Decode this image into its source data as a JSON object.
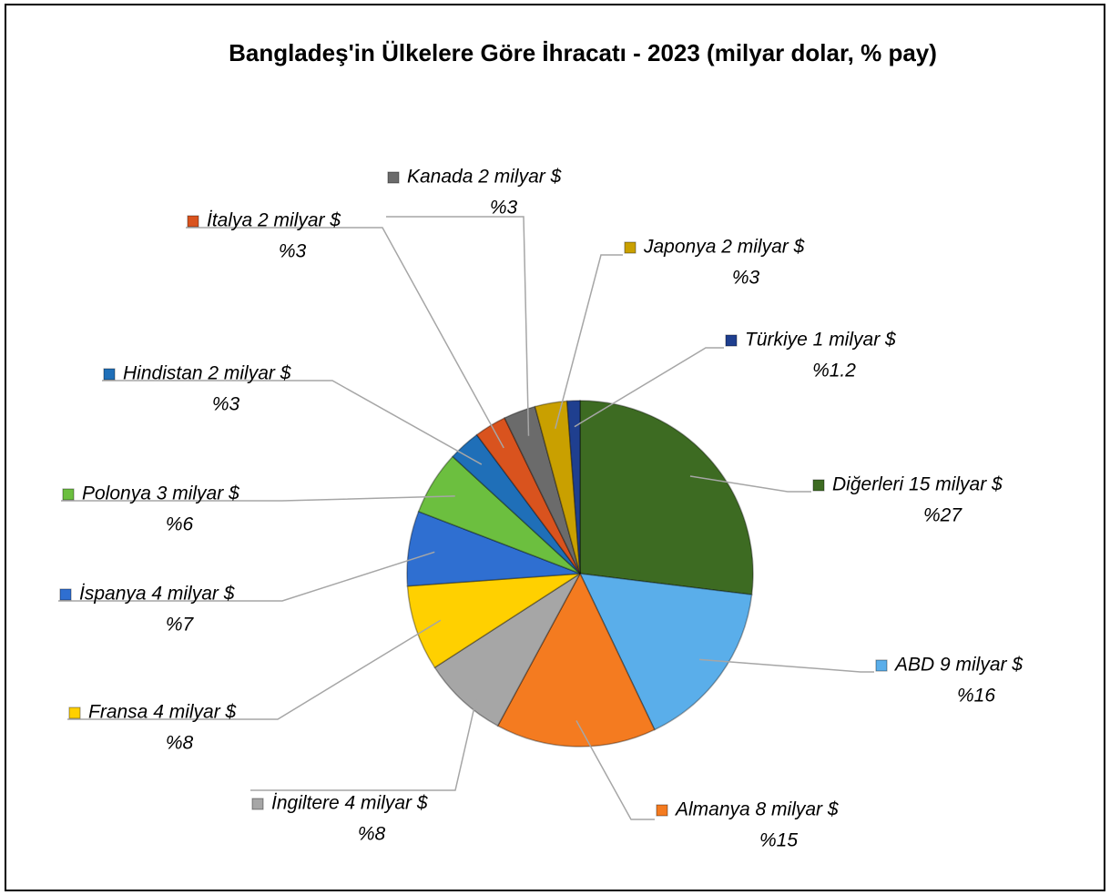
{
  "chart_data": {
    "type": "pie",
    "title": "Bangladeş'in Ülkelere Göre İhracatı - 2023 (milyar dolar, % pay)",
    "categories": [
      "Diğerleri 15 milyar $",
      "ABD 9 milyar $",
      "Almanya 8 milyar $",
      "İngiltere 4 milyar $",
      "Fransa 4 milyar $",
      "İspanya 4 milyar $",
      "Polonya 3 milyar $",
      "Hindistan 2 milyar $",
      "İtalya 2 milyar $",
      "Kanada 2 milyar $",
      "Japonya 2 milyar $",
      "Türkiye 1 milyar $"
    ],
    "values": [
      27,
      16,
      15,
      8,
      8,
      7,
      6,
      3,
      3,
      3,
      3,
      1.2
    ],
    "value_labels": [
      "%27",
      "%16",
      "%15",
      "%8",
      "%8",
      "%7",
      "%6",
      "%3",
      "%3",
      "%3",
      "%3",
      "%1.2"
    ],
    "colors": [
      "#3d6b22",
      "#5aaeea",
      "#f47b20",
      "#a6a6a6",
      "#ffd000",
      "#2f6fd1",
      "#6cbf3f",
      "#1f6fb8",
      "#d9531e",
      "#6b6b6b",
      "#c9a000",
      "#1f3f8f"
    ]
  }
}
